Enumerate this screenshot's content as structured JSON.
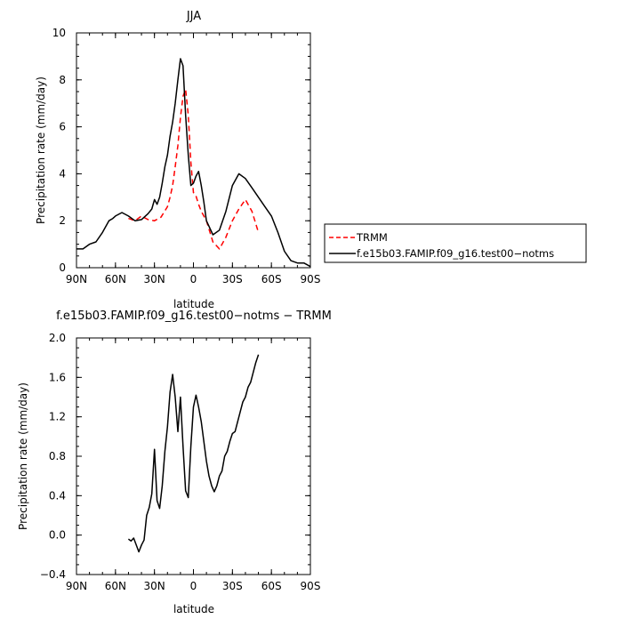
{
  "chart_data": [
    {
      "type": "line",
      "title": "JJA",
      "xlabel": "latitude",
      "ylabel": "Precipitation rate (mm/day)",
      "xlim": [
        90,
        -90
      ],
      "ylim": [
        0,
        10
      ],
      "xticks": [
        "90N",
        "60N",
        "30N",
        "0",
        "30S",
        "60S",
        "90S"
      ],
      "yticks": [
        "0",
        "2",
        "4",
        "6",
        "8",
        "10"
      ],
      "grid": false,
      "legend_position": "right, outside plot",
      "series": [
        {
          "name": "TRMM",
          "color": "#ff0000",
          "dash": "dashed",
          "x": [
            50,
            45,
            40,
            35,
            30,
            25,
            20,
            18,
            16,
            14,
            12,
            10,
            8,
            6,
            4,
            2,
            0,
            -2,
            -4,
            -6,
            -8,
            -10,
            -15,
            -20,
            -25,
            -30,
            -35,
            -40,
            -45,
            -50
          ],
          "y": [
            2.1,
            2.0,
            2.2,
            2.05,
            2.0,
            2.15,
            2.6,
            3.0,
            3.5,
            4.3,
            5.2,
            6.4,
            7.3,
            7.6,
            6.5,
            4.5,
            3.2,
            3.05,
            2.7,
            2.4,
            2.2,
            2.0,
            1.1,
            0.8,
            1.3,
            2.0,
            2.5,
            2.9,
            2.4,
            1.5
          ]
        },
        {
          "name": "f.e15b03.FAMIP.f09_g16.test00−notms",
          "color": "#000000",
          "dash": "solid",
          "x": [
            90,
            85,
            80,
            75,
            70,
            65,
            62,
            60,
            55,
            50,
            45,
            40,
            35,
            32,
            30,
            28,
            26,
            24,
            22,
            20,
            18,
            16,
            14,
            12,
            10,
            8,
            6,
            4,
            2,
            0,
            -2,
            -4,
            -6,
            -8,
            -10,
            -15,
            -20,
            -25,
            -30,
            -35,
            -40,
            -45,
            -50,
            -55,
            -60,
            -65,
            -70,
            -75,
            -80,
            -85,
            -90
          ],
          "y": [
            0.8,
            0.8,
            1.0,
            1.1,
            1.5,
            2.0,
            2.1,
            2.2,
            2.35,
            2.2,
            2.0,
            2.05,
            2.3,
            2.5,
            2.9,
            2.7,
            3.0,
            3.6,
            4.3,
            4.8,
            5.6,
            6.2,
            7.0,
            8.0,
            8.9,
            8.6,
            6.5,
            4.8,
            3.5,
            3.6,
            3.9,
            4.1,
            3.5,
            2.8,
            2.0,
            1.4,
            1.6,
            2.4,
            3.5,
            4.0,
            3.8,
            3.4,
            3.0,
            2.6,
            2.2,
            1.5,
            0.7,
            0.3,
            0.2,
            0.2,
            0.05
          ]
        }
      ]
    },
    {
      "type": "line",
      "title": "f.e15b03.FAMIP.f09_g16.test00−notms − TRMM",
      "xlabel": "latitude",
      "ylabel": "Precipitation rate (mm/day)",
      "xlim": [
        90,
        -90
      ],
      "ylim": [
        -0.4,
        2.0
      ],
      "xticks": [
        "90N",
        "60N",
        "30N",
        "0",
        "30S",
        "60S",
        "90S"
      ],
      "yticks": [
        "−0.4",
        "0.0",
        "0.4",
        "0.8",
        "1.2",
        "1.6",
        "2.0"
      ],
      "grid": false,
      "series": [
        {
          "color": "#000000",
          "dash": "solid",
          "x": [
            50,
            48,
            46,
            44,
            42,
            40,
            38,
            36,
            34,
            32,
            30,
            28,
            26,
            24,
            22,
            20,
            18,
            16,
            14,
            12,
            10,
            8,
            6,
            4,
            2,
            0,
            -2,
            -4,
            -6,
            -8,
            -10,
            -12,
            -14,
            -16,
            -18,
            -20,
            -22,
            -24,
            -26,
            -28,
            -30,
            -32,
            -34,
            -36,
            -38,
            -40,
            -42,
            -44,
            -46,
            -48,
            -50
          ],
          "y": [
            -0.04,
            -0.06,
            -0.03,
            -0.1,
            -0.17,
            -0.1,
            -0.05,
            0.2,
            0.28,
            0.42,
            0.87,
            0.35,
            0.27,
            0.5,
            0.85,
            1.1,
            1.45,
            1.63,
            1.4,
            1.05,
            1.4,
            0.9,
            0.45,
            0.38,
            0.9,
            1.3,
            1.42,
            1.3,
            1.15,
            0.95,
            0.75,
            0.6,
            0.5,
            0.44,
            0.5,
            0.6,
            0.65,
            0.8,
            0.85,
            0.95,
            1.03,
            1.05,
            1.15,
            1.25,
            1.35,
            1.4,
            1.5,
            1.55,
            1.65,
            1.75,
            1.83
          ]
        }
      ]
    }
  ]
}
